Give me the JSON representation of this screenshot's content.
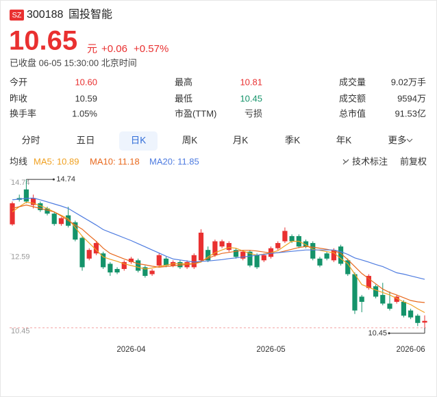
{
  "header": {
    "exchange": "SZ",
    "code": "300188",
    "name": "国投智能",
    "price": "10.65",
    "unit": "元",
    "change": "+0.06",
    "change_pct": "+0.57%",
    "status": "已收盘 06-05 15:30:00 北京时间"
  },
  "stats": [
    [
      {
        "label": "今开",
        "value": "10.60",
        "color": "#e93030"
      },
      {
        "label": "最高",
        "value": "10.81",
        "color": "#e93030"
      },
      {
        "label": "成交量",
        "value": "9.02万手"
      }
    ],
    [
      {
        "label": "昨收",
        "value": "10.59"
      },
      {
        "label": "最低",
        "value": "10.45",
        "color": "#14936a"
      },
      {
        "label": "成交额",
        "value": "9594万"
      }
    ],
    [
      {
        "label": "换手率",
        "value": "1.05%"
      },
      {
        "label": "市盈(TTM)",
        "value": "亏损"
      },
      {
        "label": "总市值",
        "value": "91.53亿"
      }
    ]
  ],
  "tabs": {
    "items": [
      "分时",
      "五日",
      "日K",
      "周K",
      "月K",
      "季K",
      "年K",
      "更多"
    ],
    "selected": 2
  },
  "toolbar": {
    "ma_title": "均线",
    "annotate": "技术标注",
    "adjust": "前复权"
  },
  "chart_data": {
    "type": "candlestick",
    "up_color": "#e93030",
    "down_color": "#14936a",
    "categories": [
      null,
      null,
      null,
      null,
      null,
      null,
      null,
      null,
      null,
      null,
      null,
      null,
      null,
      null,
      null,
      null,
      null,
      "2026-04",
      null,
      null,
      null,
      null,
      null,
      null,
      null,
      null,
      null,
      null,
      null,
      null,
      null,
      null,
      null,
      null,
      null,
      null,
      null,
      "2026-05",
      null,
      null,
      null,
      null,
      null,
      null,
      null,
      null,
      null,
      null,
      null,
      null,
      null,
      null,
      null,
      null,
      null,
      null,
      null,
      "2026-06",
      null,
      null
    ],
    "open": [
      13.44,
      14.2,
      14.45,
      14.0,
      14.05,
      13.9,
      13.75,
      13.45,
      13.7,
      13.5,
      13.05,
      12.45,
      12.6,
      12.6,
      12.3,
      12.15,
      12.15,
      12.35,
      12.4,
      12.2,
      12.0,
      12.25,
      12.45,
      12.25,
      12.35,
      12.2,
      12.2,
      12.4,
      12.7,
      12.55,
      12.8,
      12.7,
      12.7,
      12.45,
      12.65,
      12.55,
      12.4,
      12.5,
      12.75,
      12.95,
      13.1,
      13.1,
      12.95,
      12.9,
      12.45,
      12.6,
      12.4,
      12.8,
      12.4,
      12.0,
      11.35,
      11.6,
      11.65,
      11.4,
      11.15,
      11.2,
      11.2,
      10.95,
      10.8,
      10.6
    ],
    "high": [
      14.1,
      14.3,
      14.74,
      14.3,
      14.1,
      13.95,
      13.8,
      13.65,
      13.95,
      13.55,
      13.1,
      12.75,
      12.95,
      12.65,
      12.35,
      12.2,
      12.4,
      12.5,
      12.45,
      12.25,
      12.15,
      12.6,
      12.5,
      12.4,
      12.4,
      12.4,
      12.6,
      13.3,
      12.8,
      13.0,
      13.0,
      12.95,
      12.75,
      12.7,
      12.7,
      12.6,
      12.6,
      12.8,
      12.95,
      13.35,
      13.15,
      13.15,
      13.0,
      12.95,
      12.5,
      12.65,
      12.75,
      12.85,
      12.45,
      12.05,
      11.4,
      12.0,
      11.7,
      11.75,
      11.5,
      11.4,
      11.25,
      11.0,
      10.85,
      10.81
    ],
    "low": [
      13.4,
      14.1,
      14.05,
      13.9,
      13.8,
      13.7,
      13.4,
      13.4,
      13.35,
      12.95,
      12.1,
      12.4,
      12.55,
      12.15,
      11.95,
      12.0,
      12.1,
      12.3,
      12.05,
      11.9,
      11.95,
      12.2,
      12.2,
      12.2,
      12.15,
      12.15,
      12.15,
      12.35,
      12.35,
      12.5,
      12.75,
      12.65,
      12.45,
      12.4,
      12.2,
      12.15,
      12.35,
      12.45,
      12.7,
      12.9,
      12.9,
      12.75,
      12.75,
      12.4,
      12.2,
      12.4,
      12.35,
      12.25,
      11.95,
      10.85,
      10.9,
      11.55,
      11.3,
      11.1,
      10.95,
      11.15,
      10.75,
      10.7,
      10.5,
      10.45
    ],
    "close": [
      14.05,
      14.15,
      14.1,
      14.2,
      13.85,
      13.75,
      13.45,
      13.62,
      13.4,
      13.0,
      12.2,
      12.7,
      12.9,
      12.2,
      12.05,
      12.05,
      12.35,
      12.45,
      12.1,
      11.95,
      12.1,
      12.55,
      12.25,
      12.35,
      12.2,
      12.35,
      12.55,
      13.2,
      12.4,
      12.95,
      12.95,
      12.9,
      12.5,
      12.65,
      12.25,
      12.2,
      12.55,
      12.75,
      12.9,
      13.25,
      12.95,
      12.8,
      12.8,
      12.45,
      12.25,
      12.45,
      12.7,
      12.3,
      12.0,
      10.95,
      11.2,
      11.95,
      11.35,
      11.15,
      11.0,
      11.35,
      10.8,
      10.75,
      10.59,
      10.65
    ],
    "ma": [
      {
        "legend": "MA5: 10.89",
        "color": "#f0a020",
        "values": [
          13.8,
          13.95,
          14.08,
          14.05,
          13.98,
          13.9,
          13.8,
          13.7,
          13.6,
          13.35,
          13.1,
          12.9,
          12.7,
          12.5,
          12.43,
          12.37,
          12.3,
          12.25,
          12.2,
          12.15,
          12.18,
          12.22,
          12.26,
          12.3,
          12.3,
          12.3,
          12.3,
          12.35,
          12.5,
          12.62,
          12.7,
          12.77,
          12.75,
          12.67,
          12.6,
          12.55,
          12.58,
          12.62,
          12.68,
          12.82,
          12.95,
          12.95,
          12.85,
          12.72,
          12.69,
          12.65,
          12.62,
          12.45,
          12.3,
          12.0,
          11.7,
          11.62,
          11.54,
          11.47,
          11.4,
          11.3,
          11.2,
          11.12,
          11.0,
          10.89
        ]
      },
      {
        "legend": "MA10: 11.18",
        "color": "#e8681c",
        "values": [
          13.9,
          13.95,
          14.0,
          13.95,
          13.9,
          13.85,
          13.8,
          13.68,
          13.55,
          13.42,
          13.3,
          13.12,
          12.95,
          12.75,
          12.6,
          12.52,
          12.44,
          12.37,
          12.3,
          12.27,
          12.23,
          12.2,
          12.22,
          12.24,
          12.26,
          12.28,
          12.3,
          12.38,
          12.46,
          12.54,
          12.6,
          12.63,
          12.66,
          12.69,
          12.69,
          12.67,
          12.64,
          12.61,
          12.62,
          12.67,
          12.72,
          12.77,
          12.8,
          12.78,
          12.75,
          12.72,
          12.68,
          12.6,
          12.42,
          12.22,
          12.02,
          11.87,
          11.72,
          11.57,
          11.47,
          11.4,
          11.32,
          11.24,
          11.2,
          11.18
        ]
      },
      {
        "legend": "MA20: 11.85",
        "color": "#4d7be0",
        "values": [
          14.15,
          14.17,
          14.19,
          14.2,
          14.15,
          14.09,
          14.03,
          13.97,
          13.9,
          13.78,
          13.66,
          13.54,
          13.42,
          13.29,
          13.21,
          13.13,
          13.05,
          12.97,
          12.88,
          12.79,
          12.7,
          12.61,
          12.52,
          12.44,
          12.41,
          12.38,
          12.35,
          12.37,
          12.38,
          12.4,
          12.42,
          12.45,
          12.47,
          12.5,
          12.52,
          12.55,
          12.57,
          12.6,
          12.62,
          12.64,
          12.66,
          12.68,
          12.7,
          12.7,
          12.7,
          12.7,
          12.7,
          12.65,
          12.57,
          12.47,
          12.41,
          12.35,
          12.28,
          12.22,
          12.13,
          12.04,
          12.0,
          11.95,
          11.9,
          11.85
        ]
      }
    ],
    "ylim": [
      10.23,
      14.88
    ],
    "yticks": [
      14.74,
      12.59,
      10.45
    ],
    "grid": false
  }
}
